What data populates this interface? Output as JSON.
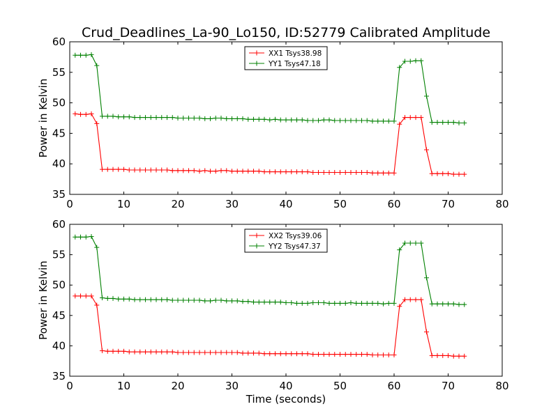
{
  "figure": {
    "title": "Crud_Deadlines_La-90_Lo150, ID:52779 Calibrated Amplitude",
    "xlabel": "Time (seconds)"
  },
  "chart_data": [
    {
      "type": "line",
      "ylabel": "Power in Kelvin",
      "xlim": [
        0,
        80
      ],
      "ylim": [
        35,
        60
      ],
      "xticks": [
        0,
        10,
        20,
        30,
        40,
        50,
        60,
        70,
        80
      ],
      "yticks": [
        35,
        40,
        45,
        50,
        55,
        60
      ],
      "grid": false,
      "legend_position": "top-center",
      "x": [
        1,
        2,
        3,
        4,
        5,
        6,
        7,
        8,
        9,
        10,
        11,
        12,
        13,
        14,
        15,
        16,
        17,
        18,
        19,
        20,
        21,
        22,
        23,
        24,
        25,
        26,
        27,
        28,
        29,
        30,
        31,
        32,
        33,
        34,
        35,
        36,
        37,
        38,
        39,
        40,
        41,
        42,
        43,
        44,
        45,
        46,
        47,
        48,
        49,
        50,
        51,
        52,
        53,
        54,
        55,
        56,
        57,
        58,
        59,
        60,
        61,
        62,
        63,
        64,
        65,
        66,
        67,
        68,
        69,
        70,
        71,
        72,
        73
      ],
      "series": [
        {
          "name": "XX1 Tsys38.98",
          "color": "#ff0000",
          "values": [
            48.2,
            48.1,
            48.1,
            48.2,
            46.6,
            39.1,
            39.1,
            39.1,
            39.1,
            39.1,
            39.0,
            39.0,
            39.0,
            39.0,
            39.0,
            39.0,
            39.0,
            39.0,
            38.9,
            38.9,
            38.9,
            38.9,
            38.9,
            38.8,
            38.9,
            38.8,
            38.8,
            38.9,
            38.9,
            38.8,
            38.8,
            38.8,
            38.8,
            38.8,
            38.8,
            38.7,
            38.7,
            38.7,
            38.7,
            38.7,
            38.7,
            38.7,
            38.7,
            38.7,
            38.6,
            38.6,
            38.6,
            38.6,
            38.6,
            38.6,
            38.6,
            38.6,
            38.6,
            38.6,
            38.6,
            38.5,
            38.5,
            38.5,
            38.5,
            38.5,
            46.5,
            47.6,
            47.6,
            47.6,
            47.6,
            42.3,
            38.4,
            38.4,
            38.4,
            38.4,
            38.3,
            38.3,
            38.3
          ]
        },
        {
          "name": "YY1 Tsys47.18",
          "color": "#008000",
          "values": [
            57.8,
            57.8,
            57.8,
            57.9,
            56.1,
            47.8,
            47.8,
            47.8,
            47.7,
            47.7,
            47.7,
            47.6,
            47.6,
            47.6,
            47.6,
            47.6,
            47.6,
            47.6,
            47.6,
            47.5,
            47.5,
            47.5,
            47.5,
            47.5,
            47.4,
            47.4,
            47.5,
            47.5,
            47.4,
            47.4,
            47.4,
            47.4,
            47.3,
            47.3,
            47.3,
            47.3,
            47.2,
            47.3,
            47.2,
            47.2,
            47.2,
            47.2,
            47.2,
            47.1,
            47.1,
            47.1,
            47.2,
            47.2,
            47.1,
            47.1,
            47.1,
            47.1,
            47.1,
            47.1,
            47.1,
            47.0,
            47.0,
            47.0,
            47.0,
            47.0,
            55.8,
            56.8,
            56.8,
            56.9,
            56.9,
            51.1,
            46.8,
            46.8,
            46.8,
            46.8,
            46.8,
            46.7,
            46.7
          ]
        }
      ]
    },
    {
      "type": "line",
      "ylabel": "Power in Kelvin",
      "xlim": [
        0,
        80
      ],
      "ylim": [
        35,
        60
      ],
      "xticks": [
        0,
        10,
        20,
        30,
        40,
        50,
        60,
        70,
        80
      ],
      "yticks": [
        35,
        40,
        45,
        50,
        55,
        60
      ],
      "grid": false,
      "legend_position": "top-center",
      "x": [
        1,
        2,
        3,
        4,
        5,
        6,
        7,
        8,
        9,
        10,
        11,
        12,
        13,
        14,
        15,
        16,
        17,
        18,
        19,
        20,
        21,
        22,
        23,
        24,
        25,
        26,
        27,
        28,
        29,
        30,
        31,
        32,
        33,
        34,
        35,
        36,
        37,
        38,
        39,
        40,
        41,
        42,
        43,
        44,
        45,
        46,
        47,
        48,
        49,
        50,
        51,
        52,
        53,
        54,
        55,
        56,
        57,
        58,
        59,
        60,
        61,
        62,
        63,
        64,
        65,
        66,
        67,
        68,
        69,
        70,
        71,
        72,
        73
      ],
      "series": [
        {
          "name": "XX2 Tsys39.06",
          "color": "#ff0000",
          "values": [
            48.2,
            48.2,
            48.2,
            48.2,
            46.7,
            39.2,
            39.1,
            39.1,
            39.1,
            39.1,
            39.0,
            39.0,
            39.0,
            39.0,
            39.0,
            39.0,
            39.0,
            39.0,
            39.0,
            38.9,
            38.9,
            38.9,
            38.9,
            38.9,
            38.9,
            38.9,
            38.9,
            38.9,
            38.9,
            38.9,
            38.9,
            38.8,
            38.8,
            38.8,
            38.8,
            38.7,
            38.7,
            38.7,
            38.7,
            38.7,
            38.7,
            38.7,
            38.7,
            38.7,
            38.6,
            38.6,
            38.6,
            38.6,
            38.6,
            38.6,
            38.6,
            38.6,
            38.6,
            38.6,
            38.6,
            38.5,
            38.5,
            38.5,
            38.5,
            38.5,
            46.5,
            47.6,
            47.6,
            47.6,
            47.6,
            42.3,
            38.4,
            38.4,
            38.4,
            38.4,
            38.3,
            38.3,
            38.3
          ]
        },
        {
          "name": "YY2 Tsys47.37",
          "color": "#008000",
          "values": [
            57.9,
            57.9,
            57.9,
            58.0,
            56.2,
            47.9,
            47.8,
            47.8,
            47.7,
            47.7,
            47.7,
            47.6,
            47.6,
            47.6,
            47.6,
            47.6,
            47.6,
            47.6,
            47.5,
            47.5,
            47.5,
            47.5,
            47.5,
            47.5,
            47.4,
            47.4,
            47.5,
            47.5,
            47.4,
            47.4,
            47.4,
            47.3,
            47.3,
            47.2,
            47.2,
            47.2,
            47.2,
            47.2,
            47.2,
            47.1,
            47.1,
            47.0,
            47.0,
            47.0,
            47.1,
            47.1,
            47.1,
            47.0,
            47.0,
            47.0,
            47.0,
            47.1,
            47.0,
            47.0,
            47.0,
            47.0,
            47.0,
            46.9,
            47.0,
            47.0,
            55.8,
            56.9,
            56.9,
            56.9,
            56.9,
            51.2,
            46.9,
            46.9,
            46.9,
            46.9,
            46.9,
            46.8,
            46.8
          ]
        }
      ]
    }
  ]
}
